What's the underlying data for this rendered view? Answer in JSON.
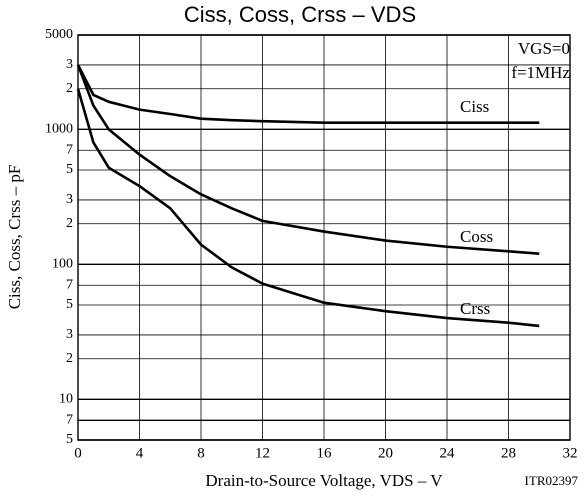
{
  "chart_data": {
    "type": "line",
    "title": "Ciss, Coss, Crss – VDS",
    "x_label": "Drain-to-Source Voltage, VDS – V",
    "y_label": "Ciss, Coss, Crss – pF",
    "annotations": [
      "VGS=0",
      "f=1MHz",
      "ITR02397"
    ],
    "x": [
      0,
      1,
      2,
      4,
      6,
      8,
      10,
      12,
      16,
      20,
      24,
      28,
      30
    ],
    "series": [
      {
        "name": "Ciss",
        "color": "#000000",
        "values": [
          3000,
          1800,
          1600,
          1400,
          1300,
          1200,
          1170,
          1150,
          1120,
          1120,
          1120,
          1120,
          1120
        ]
      },
      {
        "name": "Coss",
        "color": "#000000",
        "values": [
          3000,
          1500,
          1000,
          650,
          450,
          330,
          260,
          210,
          175,
          150,
          135,
          125,
          120
        ]
      },
      {
        "name": "Crss",
        "color": "#000000",
        "values": [
          2000,
          800,
          520,
          380,
          260,
          140,
          95,
          72,
          52,
          45,
          40,
          37,
          35
        ]
      }
    ],
    "xlim": [
      0,
      32
    ],
    "xticks": [
      0,
      4,
      8,
      12,
      16,
      20,
      24,
      28,
      32
    ],
    "ylim": [
      5,
      5000
    ],
    "log_y": true,
    "yticks": [
      5,
      7,
      10,
      {
        "value": 20,
        "label": "2"
      },
      {
        "value": 30,
        "label": "3"
      },
      {
        "value": 50,
        "label": "5"
      },
      {
        "value": 70,
        "label": "7"
      },
      100,
      {
        "value": 200,
        "label": "2"
      },
      {
        "value": 300,
        "label": "3"
      },
      {
        "value": 500,
        "label": "5"
      },
      {
        "value": 700,
        "label": "7"
      },
      1000,
      {
        "value": 2000,
        "label": "2"
      },
      {
        "value": 3000,
        "label": "3"
      },
      5000
    ],
    "grid": true
  }
}
